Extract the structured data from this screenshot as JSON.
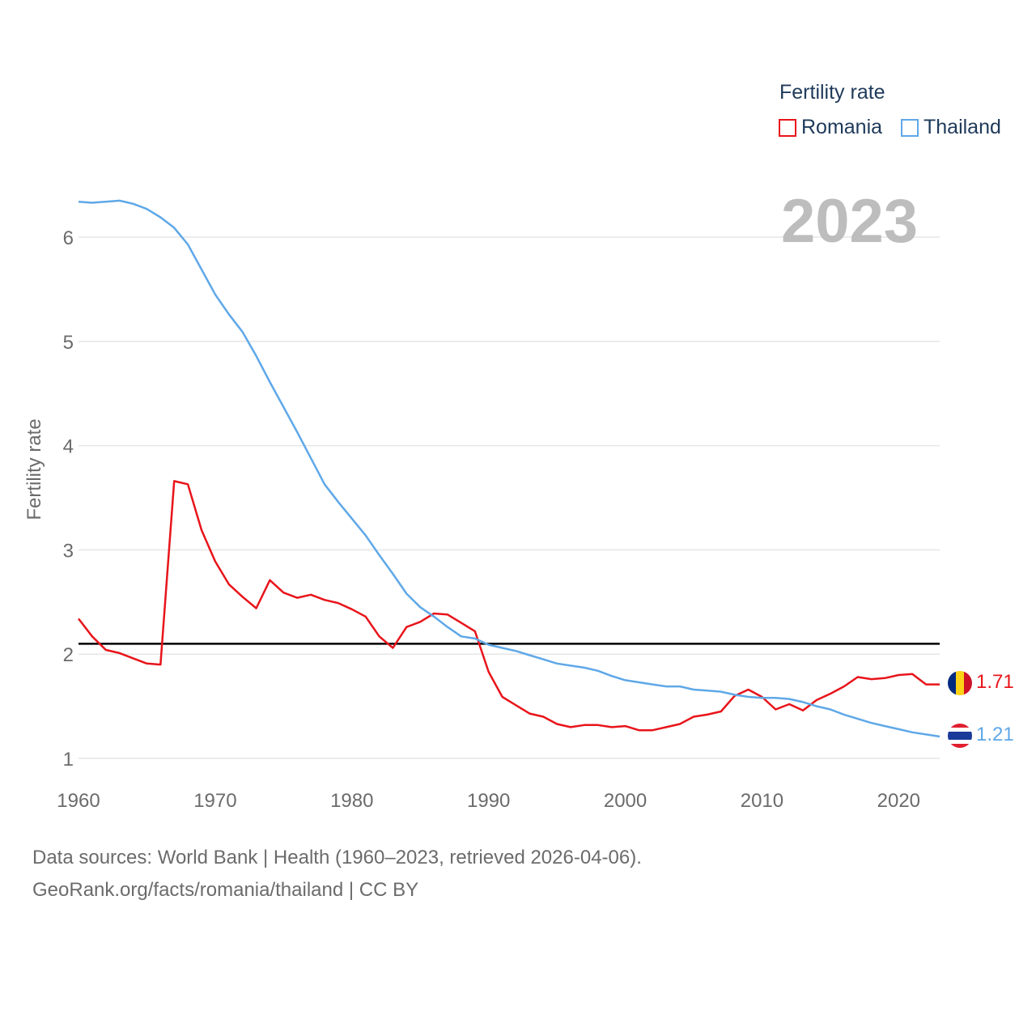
{
  "chart_data": {
    "type": "line",
    "title": "Fertility rate",
    "ylabel": "Fertility rate",
    "xlabel": "",
    "xlim": [
      1960,
      2023
    ],
    "ylim": [
      0.9,
      6.5
    ],
    "x_ticks": [
      "1960",
      "1970",
      "1980",
      "1990",
      "2000",
      "2010",
      "2020"
    ],
    "y_ticks": [
      "1",
      "2",
      "3",
      "4",
      "5",
      "6"
    ],
    "reference_line": 2.1,
    "current_year": "2023",
    "x": [
      1960,
      1961,
      1962,
      1963,
      1964,
      1965,
      1966,
      1967,
      1968,
      1969,
      1970,
      1971,
      1972,
      1973,
      1974,
      1975,
      1976,
      1977,
      1978,
      1979,
      1980,
      1981,
      1982,
      1983,
      1984,
      1985,
      1986,
      1987,
      1988,
      1989,
      1990,
      1991,
      1992,
      1993,
      1994,
      1995,
      1996,
      1997,
      1998,
      1999,
      2000,
      2001,
      2002,
      2003,
      2004,
      2005,
      2006,
      2007,
      2008,
      2009,
      2010,
      2011,
      2012,
      2013,
      2014,
      2015,
      2016,
      2017,
      2018,
      2019,
      2020,
      2021,
      2022,
      2023
    ],
    "series": [
      {
        "name": "Romania",
        "color": "#e8141a",
        "end_label": "1.71",
        "values": [
          2.34,
          2.17,
          2.04,
          2.01,
          1.96,
          1.91,
          1.9,
          3.66,
          3.63,
          3.19,
          2.89,
          2.67,
          2.55,
          2.44,
          2.71,
          2.59,
          2.54,
          2.57,
          2.52,
          2.49,
          2.43,
          2.36,
          2.17,
          2.06,
          2.26,
          2.31,
          2.39,
          2.38,
          2.3,
          2.22,
          1.83,
          1.59,
          1.51,
          1.43,
          1.4,
          1.33,
          1.3,
          1.32,
          1.32,
          1.3,
          1.31,
          1.27,
          1.27,
          1.3,
          1.33,
          1.4,
          1.42,
          1.45,
          1.6,
          1.66,
          1.59,
          1.47,
          1.52,
          1.46,
          1.56,
          1.62,
          1.69,
          1.78,
          1.76,
          1.77,
          1.8,
          1.81,
          1.71,
          1.71
        ]
      },
      {
        "name": "Thailand",
        "color": "#5fa8e8",
        "end_label": "1.21",
        "values": [
          6.34,
          6.33,
          6.34,
          6.35,
          6.32,
          6.27,
          6.19,
          6.09,
          5.93,
          5.69,
          5.45,
          5.26,
          5.09,
          4.86,
          4.61,
          4.37,
          4.13,
          3.88,
          3.63,
          3.46,
          3.3,
          3.14,
          2.95,
          2.77,
          2.58,
          2.45,
          2.36,
          2.26,
          2.17,
          2.15,
          2.09,
          2.06,
          2.03,
          1.99,
          1.95,
          1.91,
          1.89,
          1.87,
          1.84,
          1.79,
          1.75,
          1.73,
          1.71,
          1.69,
          1.69,
          1.66,
          1.65,
          1.64,
          1.61,
          1.59,
          1.58,
          1.58,
          1.57,
          1.54,
          1.5,
          1.47,
          1.42,
          1.38,
          1.34,
          1.31,
          1.28,
          1.25,
          1.23,
          1.21
        ]
      }
    ]
  },
  "legend": {
    "title": "Fertility rate",
    "items": [
      {
        "label": "Romania",
        "color": "#e8141a"
      },
      {
        "label": "Thailand",
        "color": "#5fa8e8"
      }
    ]
  },
  "footer": {
    "sources": "Data sources: World Bank | Health (1960–2023, retrieved 2026-04-06).",
    "credit": "GeoRank.org/facts/romania/thailand | CC BY"
  }
}
